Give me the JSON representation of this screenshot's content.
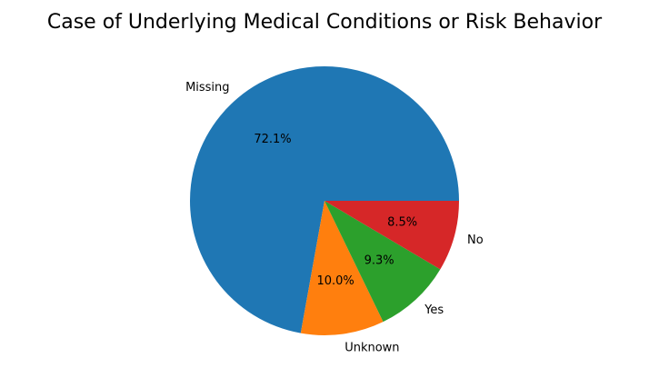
{
  "chart_data": {
    "type": "pie",
    "title": "Case of Underlying Medical Conditions or Risk Behavior",
    "slices": [
      {
        "label": "Missing",
        "value": 72.1,
        "pct_label": "72.1%",
        "color": "#1f77b4"
      },
      {
        "label": "Unknown",
        "value": 10.0,
        "pct_label": "10.0%",
        "color": "#ff7f0e"
      },
      {
        "label": "Yes",
        "value": 9.3,
        "pct_label": "9.3%",
        "color": "#2ca02c"
      },
      {
        "label": "No",
        "value": 8.5,
        "pct_label": "8.5%",
        "color": "#d62728"
      }
    ],
    "start_angle_deg": 0,
    "direction": "counterclockwise",
    "legend": "none"
  }
}
